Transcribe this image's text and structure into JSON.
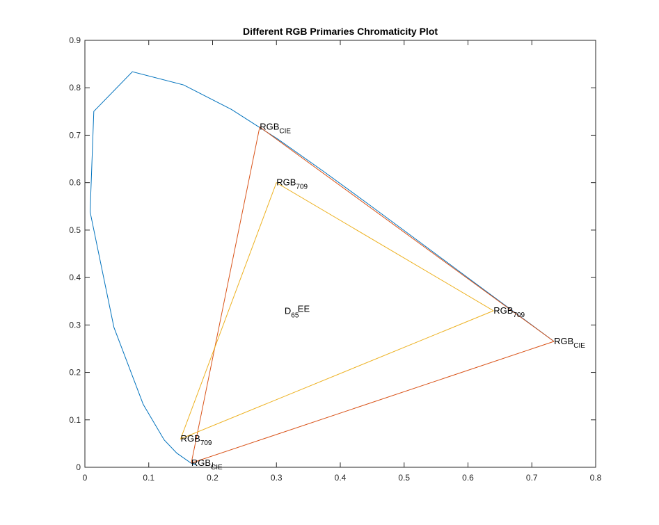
{
  "chart_data": {
    "type": "line",
    "title": "Different RGB Primaries Chromaticity Plot",
    "xlabel": "",
    "ylabel": "",
    "xlim": [
      0,
      0.8
    ],
    "ylim": [
      0,
      0.9
    ],
    "xticks": [
      "0",
      "0.1",
      "0.2",
      "0.3",
      "0.4",
      "0.5",
      "0.6",
      "0.7",
      "0.8"
    ],
    "yticks": [
      "0",
      "0.1",
      "0.2",
      "0.3",
      "0.4",
      "0.5",
      "0.6",
      "0.7",
      "0.8",
      "0.9"
    ],
    "grid": false,
    "series": [
      {
        "color": "#0072BD",
        "x": [
          0.1741,
          0.1661,
          0.144,
          0.1241,
          0.0913,
          0.0454,
          0.0082,
          0.0139,
          0.0743,
          0.1547,
          0.2296,
          0.3016,
          0.3731,
          0.4441,
          0.5125,
          0.5752,
          0.627,
          0.6915,
          0.7347
        ],
        "y": [
          0.005,
          0.0089,
          0.0297,
          0.0578,
          0.1327,
          0.295,
          0.5384,
          0.7502,
          0.8338,
          0.8059,
          0.7543,
          0.6923,
          0.6245,
          0.5547,
          0.4866,
          0.4242,
          0.3725,
          0.3083,
          0.2653
        ]
      },
      {
        "color": "#D95319",
        "x": [
          0.7347,
          0.2738,
          0.1666,
          0.7347
        ],
        "y": [
          0.2653,
          0.7174,
          0.0089,
          0.2653
        ]
      },
      {
        "color": "#EDB120",
        "x": [
          0.64,
          0.3,
          0.15,
          0.64
        ],
        "y": [
          0.33,
          0.6,
          0.06,
          0.33
        ]
      }
    ],
    "annotations": [
      {
        "base": "RGB",
        "sub": "CIE",
        "x": 0.2738,
        "y": 0.7174
      },
      {
        "base": "RGB",
        "sub": "CIE",
        "x": 0.7347,
        "y": 0.2653
      },
      {
        "base": "RGB",
        "sub": "CIE",
        "x": 0.1666,
        "y": 0.0089
      },
      {
        "base": "RGB",
        "sub": "709",
        "x": 0.3,
        "y": 0.6
      },
      {
        "base": "RGB",
        "sub": "709",
        "x": 0.64,
        "y": 0.33
      },
      {
        "base": "RGB",
        "sub": "709",
        "x": 0.15,
        "y": 0.06
      },
      {
        "base": "D",
        "sub": "65",
        "x": 0.3127,
        "y": 0.329
      },
      {
        "base": "EE",
        "sub": "",
        "x": 0.3333,
        "y": 0.3333
      }
    ]
  }
}
